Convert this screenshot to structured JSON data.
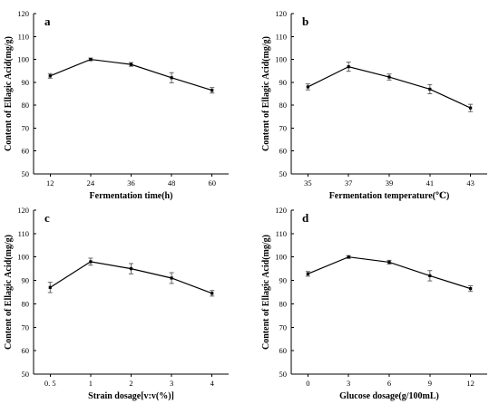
{
  "chart_data": [
    {
      "type": "line",
      "panel_label": "a",
      "xlabel": "Fermentation time(h)",
      "ylabel": "Content of Ellagic Acid(mg/g)",
      "categories": [
        "12",
        "24",
        "36",
        "48",
        "60"
      ],
      "values": [
        92.8,
        100.0,
        97.8,
        92.0,
        86.5
      ],
      "errors": [
        1.0,
        0.6,
        0.8,
        2.2,
        1.2
      ],
      "ylim": [
        50,
        120
      ],
      "yticks": [
        "50",
        "60",
        "70",
        "80",
        "90",
        "100",
        "110",
        "120"
      ],
      "grid": false
    },
    {
      "type": "line",
      "panel_label": "b",
      "xlabel": "Fermentation temperature(℃)",
      "ylabel": "Content of Ellagic Acid(mg/g)",
      "categories": [
        "35",
        "37",
        "39",
        "41",
        "43"
      ],
      "values": [
        88.0,
        96.8,
        92.3,
        87.0,
        78.8
      ],
      "errors": [
        1.3,
        2.0,
        1.3,
        2.0,
        1.6
      ],
      "ylim": [
        50,
        120
      ],
      "yticks": [
        "50",
        "60",
        "70",
        "80",
        "90",
        "100",
        "110",
        "120"
      ],
      "grid": false
    },
    {
      "type": "line",
      "panel_label": "c",
      "xlabel": "Strain dosage[v:v(%)]",
      "ylabel": "Content of Ellagic Acid(mg/g)",
      "categories": [
        "0. 5",
        "1",
        "2",
        "3",
        "4"
      ],
      "values": [
        87.0,
        98.0,
        95.0,
        91.0,
        84.5
      ],
      "errors": [
        2.2,
        1.5,
        2.2,
        2.3,
        1.2
      ],
      "ylim": [
        50,
        120
      ],
      "yticks": [
        "50",
        "60",
        "70",
        "80",
        "90",
        "100",
        "110",
        "120"
      ],
      "grid": false
    },
    {
      "type": "line",
      "panel_label": "d",
      "xlabel": "Glucose dosage(g/100mL)",
      "ylabel": "Content of Ellagic Acid(mg/g)",
      "categories": [
        "0",
        "3",
        "6",
        "9",
        "12"
      ],
      "values": [
        92.8,
        100.0,
        97.8,
        92.0,
        86.5
      ],
      "errors": [
        1.0,
        0.6,
        0.8,
        2.2,
        1.2
      ],
      "ylim": [
        50,
        120
      ],
      "yticks": [
        "50",
        "60",
        "70",
        "80",
        "90",
        "100",
        "110",
        "120"
      ],
      "grid": false
    }
  ]
}
